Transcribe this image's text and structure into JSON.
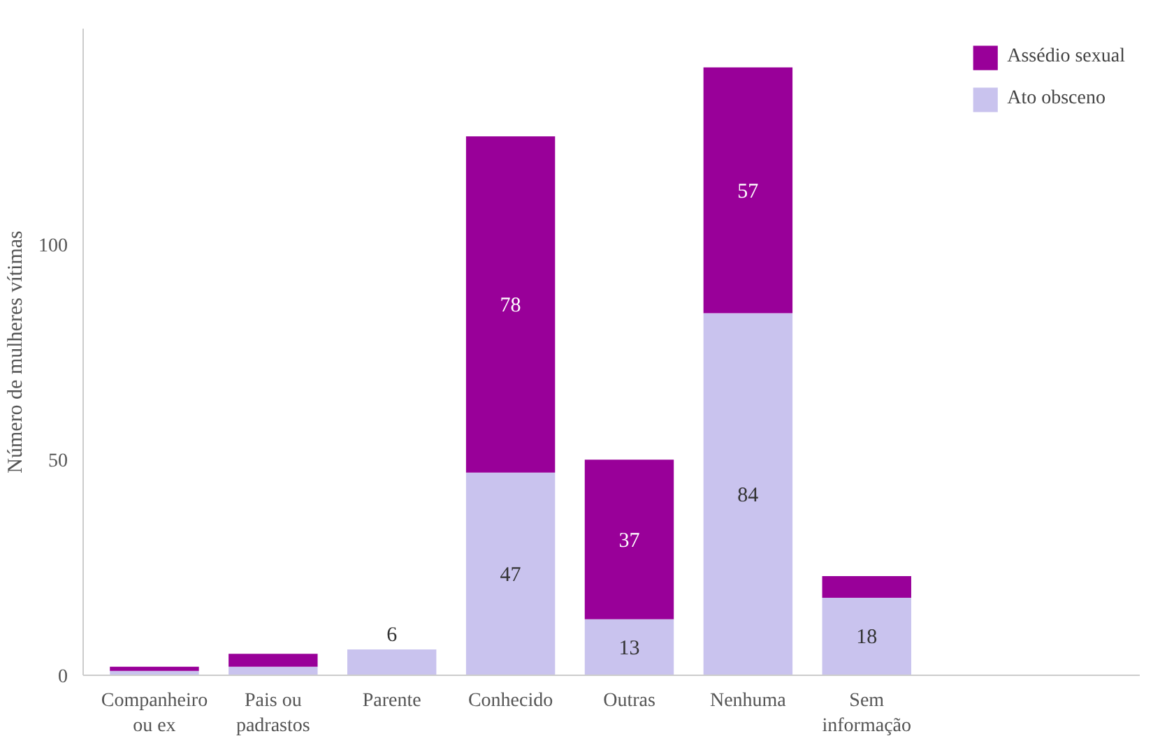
{
  "chart_data": {
    "type": "bar",
    "stacked": true,
    "ylabel": "Número de mulheres vítimas",
    "categories": [
      "Companheiro\nou ex",
      "Pais ou\npadrastos",
      "Parente",
      "Conhecido",
      "Outras",
      "Nenhuma",
      "Sem\ninformação"
    ],
    "series": [
      {
        "name": "Ato obsceno",
        "color": "#c9c3ee",
        "values": [
          1,
          2,
          6,
          47,
          13,
          84,
          18
        ],
        "value_labels": [
          null,
          null,
          "6",
          "47",
          "13",
          "84",
          "18"
        ]
      },
      {
        "name": "Assédio sexual",
        "color": "#990099",
        "values": [
          1,
          3,
          0,
          78,
          37,
          57,
          5
        ],
        "value_labels": [
          null,
          null,
          null,
          "78",
          "37",
          "57",
          null
        ]
      }
    ],
    "ylim": [
      0,
      150
    ],
    "yticks": [
      0,
      50,
      100
    ],
    "grid": false,
    "legend": "top right"
  }
}
